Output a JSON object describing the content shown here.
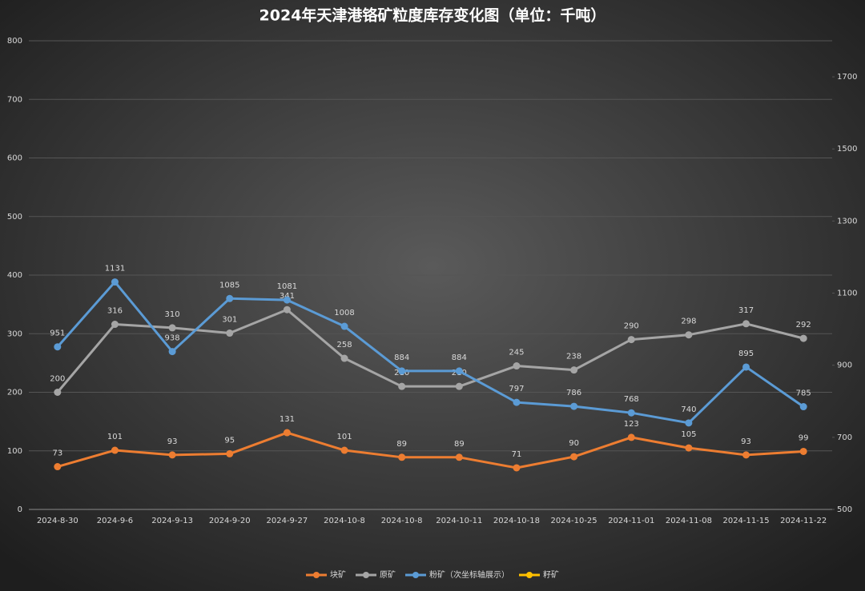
{
  "chart_data": {
    "type": "line",
    "title": "2024年天津港铬矿粒度库存变化图（单位：千吨）",
    "categories": [
      "2024-8-30",
      "2024-9-6",
      "2024-9-13",
      "2024-9-20",
      "2024-9-27",
      "2024-10-8",
      "2024-10-8",
      "2024-10-11",
      "2024-10-18",
      "2024-10-25",
      "2024-11-01",
      "2024-11-08",
      "2024-11-15",
      "2024-11-22"
    ],
    "series": [
      {
        "name": "块矿",
        "color": "#ed7d31",
        "values": [
          73,
          101,
          93,
          95,
          131,
          101,
          89,
          89,
          71,
          90,
          123,
          105,
          93,
          99
        ]
      },
      {
        "name": "原矿",
        "color": "#a5a5a5",
        "values": [
          200,
          316,
          310,
          301,
          341,
          258,
          210,
          210,
          245,
          238,
          290,
          298,
          317,
          292
        ]
      },
      {
        "name": "粉矿（次坐标轴展示）",
        "color": "#5b9bd5",
        "axis": "y2",
        "values": [
          951,
          1131,
          938,
          1085,
          1081,
          1008,
          884,
          884,
          797,
          786,
          768,
          740,
          895,
          785
        ]
      },
      {
        "name": "籽矿",
        "color": "#ffc000",
        "values": [
          null,
          null,
          null,
          null,
          null,
          null,
          null,
          null,
          null,
          null,
          null,
          null,
          null,
          null
        ]
      }
    ],
    "ylim": [
      0,
      800
    ],
    "yticks": [
      0,
      100,
      200,
      300,
      400,
      500,
      600,
      700,
      800
    ],
    "y2lim": [
      500,
      1800
    ],
    "y2ticks": [
      500,
      700,
      900,
      1100,
      1300,
      1500,
      1700
    ],
    "grid": true,
    "legend": "bottom"
  }
}
